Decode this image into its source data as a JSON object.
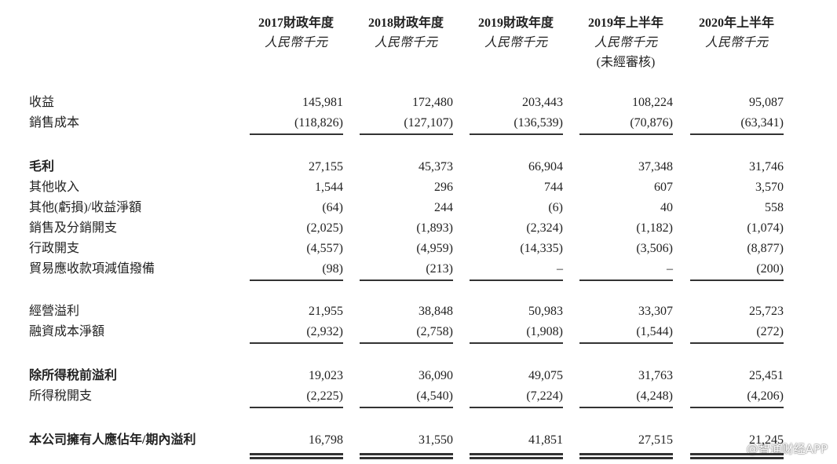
{
  "header": {
    "columns": [
      {
        "title": "2017財政年度",
        "unit": "人民幣千元"
      },
      {
        "title": "2018財政年度",
        "unit": "人民幣千元"
      },
      {
        "title": "2019財政年度",
        "unit": "人民幣千元"
      },
      {
        "title": "2019年上半年",
        "unit": "人民幣千元",
        "note": "(未經審核)"
      },
      {
        "title": "2020年上半年",
        "unit": "人民幣千元"
      }
    ]
  },
  "table": {
    "groups": [
      {
        "rows": [
          {
            "label": "收益",
            "values": [
              "145,981",
              "172,480",
              "203,443",
              "108,224",
              "95,087"
            ]
          },
          {
            "label": "銷售成本",
            "values": [
              "(118,826)",
              "(127,107)",
              "(136,539)",
              "(70,876)",
              "(63,341)"
            ]
          }
        ]
      },
      {
        "rows": [
          {
            "label": "毛利",
            "bold": true,
            "values": [
              "27,155",
              "45,373",
              "66,904",
              "37,348",
              "31,746"
            ]
          },
          {
            "label": "其他收入",
            "values": [
              "1,544",
              "296",
              "744",
              "607",
              "3,570"
            ]
          },
          {
            "label": "其他(虧損)/收益淨額",
            "values": [
              "(64)",
              "244",
              "(6)",
              "40",
              "558"
            ]
          },
          {
            "label": "銷售及分銷開支",
            "values": [
              "(2,025)",
              "(1,893)",
              "(2,324)",
              "(1,182)",
              "(1,074)"
            ]
          },
          {
            "label": "行政開支",
            "values": [
              "(4,557)",
              "(4,959)",
              "(14,335)",
              "(3,506)",
              "(8,877)"
            ]
          },
          {
            "label": "貿易應收款項減值撥備",
            "values": [
              "(98)",
              "(213)",
              "–",
              "–",
              "(200)"
            ]
          }
        ]
      },
      {
        "rows": [
          {
            "label": "經營溢利",
            "values": [
              "21,955",
              "38,848",
              "50,983",
              "33,307",
              "25,723"
            ]
          },
          {
            "label": "融資成本淨額",
            "values": [
              "(2,932)",
              "(2,758)",
              "(1,908)",
              "(1,544)",
              "(272)"
            ]
          }
        ]
      },
      {
        "rows": [
          {
            "label": "除所得稅前溢利",
            "bold": true,
            "values": [
              "19,023",
              "36,090",
              "49,075",
              "31,763",
              "25,451"
            ]
          },
          {
            "label": "所得稅開支",
            "values": [
              "(2,225)",
              "(4,540)",
              "(7,224)",
              "(4,248)",
              "(4,206)"
            ]
          }
        ]
      },
      {
        "rows": [
          {
            "label": "本公司擁有人應佔年/期內溢利",
            "bold": true,
            "values": [
              "16,798",
              "31,550",
              "41,851",
              "27,515",
              "21,245"
            ]
          }
        ]
      }
    ]
  },
  "watermark": "@智通财经APP"
}
